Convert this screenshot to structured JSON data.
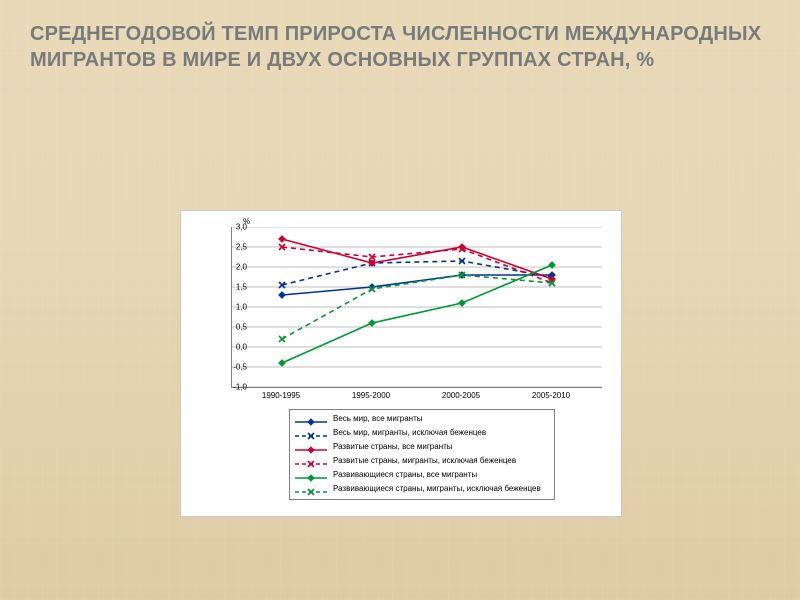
{
  "title": "СРЕДНЕГОДОВОЙ ТЕМП ПРИРОСТА ЧИСЛЕННОСТИ МЕЖДУНАРОДНЫХ МИГРАНТОВ В МИРЕ И ДВУХ ОСНОВНЫХ ГРУППАХ СТРАН, %",
  "chart": {
    "type": "line",
    "y_axis_label": "%",
    "ylim": [
      -1.0,
      3.0
    ],
    "ytick_step": 0.5,
    "y_ticks": [
      "-1,0",
      "-0,5",
      "0,0",
      "0,5",
      "1,0",
      "1,5",
      "2,0",
      "2,5",
      "3,0"
    ],
    "categories": [
      "1990-1995",
      "1995-2000",
      "2000-2005",
      "2005-2010"
    ],
    "grid_color": "#808080",
    "background_color": "#ffffff",
    "plot_border_color": "#808080",
    "label_fontsize": 8,
    "series": [
      {
        "name": "Весь мир, все мигранты",
        "color": "#003399",
        "dash": false,
        "marker": "diamond",
        "values": [
          1.3,
          1.5,
          1.8,
          1.8
        ]
      },
      {
        "name": "Весь мир, мигранты, исключая беженцев",
        "color": "#003399",
        "dash": true,
        "marker": "x",
        "values": [
          1.55,
          2.1,
          2.15,
          1.75
        ]
      },
      {
        "name": "Развитые страны, все мигранты",
        "color": "#cc0033",
        "dash": false,
        "marker": "diamond",
        "values": [
          2.7,
          2.1,
          2.5,
          1.7
        ]
      },
      {
        "name": "Развитые страны, мигранты, исключая беженцев",
        "color": "#cc0033",
        "dash": true,
        "marker": "x",
        "values": [
          2.5,
          2.25,
          2.45,
          1.6
        ]
      },
      {
        "name": "Развивающиеся страны, все мигранты",
        "color": "#009933",
        "dash": false,
        "marker": "diamond",
        "values": [
          -0.4,
          0.6,
          1.1,
          2.05
        ]
      },
      {
        "name": "Развивающиеся страны, мигранты, исключая беженцев",
        "color": "#009933",
        "dash": true,
        "marker": "x",
        "values": [
          0.2,
          1.45,
          1.8,
          1.6
        ]
      }
    ]
  }
}
